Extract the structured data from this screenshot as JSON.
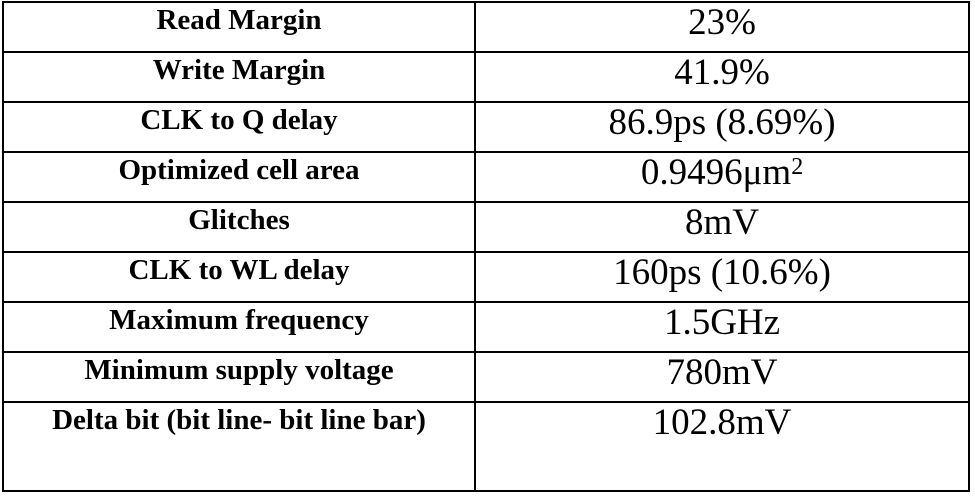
{
  "table": {
    "rows": [
      {
        "param": "Read Margin",
        "value": "23%"
      },
      {
        "param": "Write Margin",
        "value": "41.9%"
      },
      {
        "param": "CLK to Q delay",
        "value": "86.9ps (8.69%)"
      },
      {
        "param": "Optimized cell area",
        "value": "0.9496μm",
        "value_sup": "2"
      },
      {
        "param": "Glitches",
        "value": "8mV"
      },
      {
        "param": "CLK to WL delay",
        "value": "160ps (10.6%)"
      },
      {
        "param": "Maximum frequency",
        "value": "1.5GHz"
      },
      {
        "param": "Minimum supply voltage",
        "value": "780mV"
      },
      {
        "param": "Delta bit (bit line- bit line bar)",
        "value": "102.8mV"
      }
    ]
  }
}
